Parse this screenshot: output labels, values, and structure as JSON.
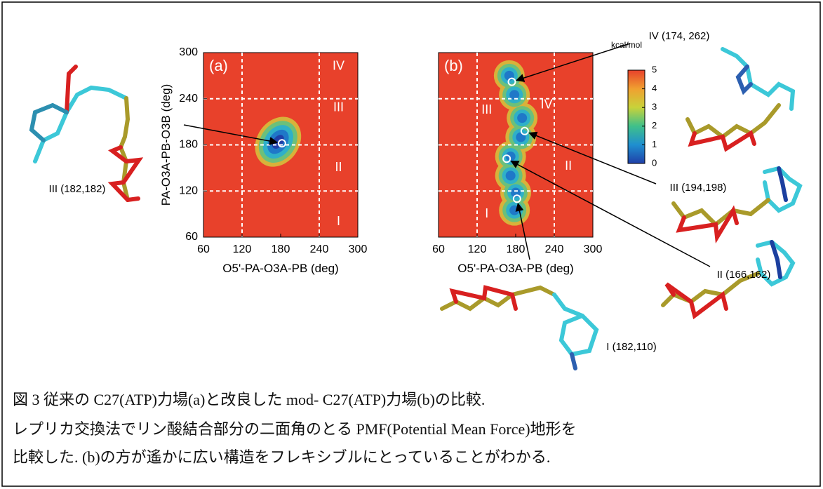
{
  "panels": [
    {
      "label": "(a)",
      "x_label": "O5'-PA-O3A-PB (deg)",
      "y_label": "PA-O3A-PB-O3B (deg)",
      "xlim": [
        60,
        300
      ],
      "ylim": [
        60,
        300
      ],
      "xticks": [
        60,
        120,
        180,
        240,
        300
      ],
      "yticks": [
        60,
        120,
        180,
        240,
        300
      ],
      "dividers_x": [
        120,
        240
      ],
      "dividers_y": [
        120,
        180,
        240
      ],
      "regions": [
        "IV",
        "III",
        "II",
        "I"
      ],
      "points": [
        {
          "x": 182,
          "y": 182,
          "label": "III (182,182)"
        }
      ]
    },
    {
      "label": "(b)",
      "x_label": "O5'-PA-O3A-PB (deg)",
      "xlim": [
        60,
        300
      ],
      "ylim": [
        60,
        300
      ],
      "xticks": [
        60,
        120,
        180,
        240,
        300
      ],
      "dividers_x": [
        120,
        240
      ],
      "dividers_y": [
        120,
        180,
        240
      ],
      "regions": [
        "IV",
        "III",
        "II",
        "I"
      ],
      "points": [
        {
          "x": 174,
          "y": 262,
          "label": "IV (174, 262)"
        },
        {
          "x": 194,
          "y": 198,
          "label": "III (194,198)"
        },
        {
          "x": 166,
          "y": 162,
          "label": "II (166,162)"
        },
        {
          "x": 182,
          "y": 110,
          "label": "I (182,110)"
        }
      ]
    }
  ],
  "colorbar": {
    "title": "kcal/mol",
    "lim": [
      0,
      5
    ],
    "ticks": [
      0,
      1,
      2,
      3,
      4,
      5
    ]
  },
  "caption": [
    "図 3 従来の C27(ATP)力場(a)と改良した mod- C27(ATP)力場(b)の比較.",
    "レプリカ交換法でリン酸結合部分の二面角のとる PMF(Potential Mean Force)地形を",
    "比較した. (b)の方が遙かに広い構造をフレキシブルにとっていることがわかる."
  ]
}
